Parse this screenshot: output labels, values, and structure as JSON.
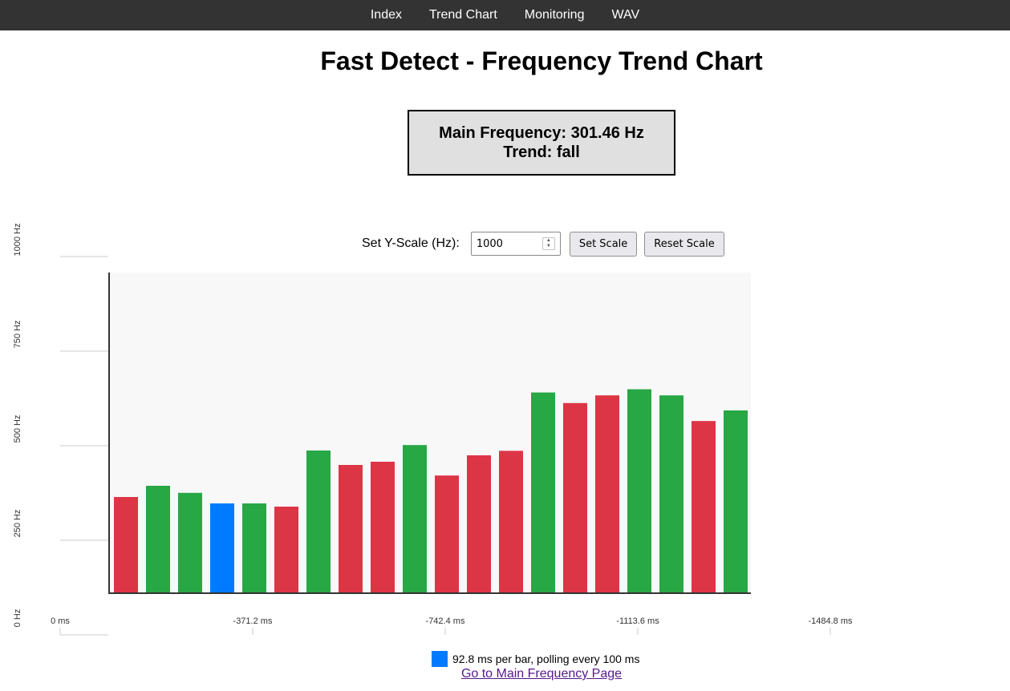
{
  "nav": {
    "items": [
      {
        "label": "Index"
      },
      {
        "label": "Trend Chart"
      },
      {
        "label": "Monitoring"
      },
      {
        "label": "WAV"
      }
    ]
  },
  "header": {
    "title": "Fast Detect - Frequency Trend Chart"
  },
  "status": {
    "main_frequency": "Main Frequency: 301.46 Hz",
    "trend": "Trend: fall"
  },
  "scale": {
    "label": "Set Y-Scale (Hz):",
    "value": "1000",
    "set_button": "Set Scale",
    "reset_button": "Reset Scale"
  },
  "colors": {
    "rise": "#28a745",
    "fall": "#dc3545",
    "current": "#007bff",
    "plot_bg": "#f8f8f8",
    "axis": "#333333",
    "grid": "#cccccc"
  },
  "chart_data": {
    "type": "bar",
    "title": "",
    "ylabel": "",
    "xlabel": "",
    "ylim": [
      0,
      1000
    ],
    "y_ticks": [
      {
        "value": 0,
        "label": "0 Hz"
      },
      {
        "value": 250,
        "label": "250 Hz"
      },
      {
        "value": 500,
        "label": "500 Hz"
      },
      {
        "value": 750,
        "label": "750 Hz"
      },
      {
        "value": 1000,
        "label": "1000 Hz"
      }
    ],
    "x_ticks": [
      "0 ms",
      "-371.2 ms",
      "-742.4 ms",
      "-1113.6 ms",
      "-1484.8 ms"
    ],
    "values": [
      300,
      335,
      313,
      280,
      280,
      270,
      445,
      400,
      410,
      462,
      367,
      430,
      444,
      626,
      593,
      617,
      636,
      617,
      537,
      570
    ],
    "trends": [
      "fall",
      "rise",
      "rise",
      "current",
      "rise",
      "fall",
      "rise",
      "fall",
      "fall",
      "rise",
      "fall",
      "fall",
      "fall",
      "rise",
      "fall",
      "fall",
      "rise",
      "rise",
      "fall",
      "rise"
    ],
    "legend": [
      {
        "color": "#007bff",
        "label": "92.8 ms per bar, polling every 100 ms"
      }
    ]
  },
  "footer": {
    "link_label": "Go to Main Frequency Page"
  }
}
